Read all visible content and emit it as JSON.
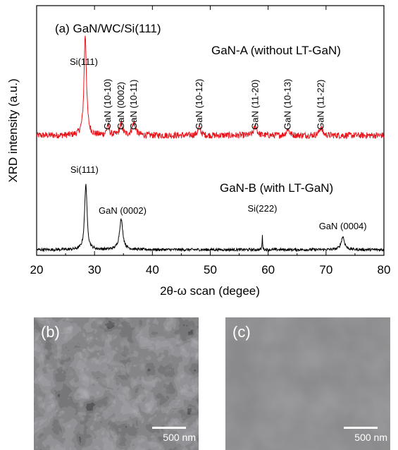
{
  "chart_data": {
    "type": "line",
    "title": "(a) GaN/WC/Si(111)",
    "xlabel": "2θ-ω scan (degee)",
    "ylabel": "XRD intensity (a.u.)",
    "xlim": [
      20,
      80
    ],
    "xticks": [
      "20",
      "30",
      "40",
      "50",
      "60",
      "70",
      "80"
    ],
    "series": [
      {
        "name": "GaN-A (without LT-GaN)",
        "color": "#e8141b",
        "baseline": 0.0,
        "noise": 0.02,
        "peaks": [
          {
            "x": 28.4,
            "height": 0.62,
            "width": 0.25
          },
          {
            "x": 32.3,
            "height": 0.06,
            "width": 0.25
          },
          {
            "x": 34.6,
            "height": 0.07,
            "width": 0.3
          },
          {
            "x": 36.8,
            "height": 0.08,
            "width": 0.35
          },
          {
            "x": 48.1,
            "height": 0.05,
            "width": 0.3
          },
          {
            "x": 57.8,
            "height": 0.06,
            "width": 0.3
          },
          {
            "x": 63.4,
            "height": 0.04,
            "width": 0.3
          },
          {
            "x": 69.1,
            "height": 0.05,
            "width": 0.3
          }
        ],
        "peak_labels": [
          {
            "text": "Si(111)",
            "x": 28.4,
            "level": 1.0
          },
          {
            "text": "GaN (10-10)",
            "x": 32.3,
            "level": 0.2
          },
          {
            "text": "GaN (0002)",
            "x": 34.6,
            "level": 0.2
          },
          {
            "text": "GaN (10-11)",
            "x": 36.8,
            "level": 0.2
          },
          {
            "text": "GaN (10-12)",
            "x": 48.1,
            "level": 0.2
          },
          {
            "text": "GaN (11-20)",
            "x": 57.8,
            "level": 0.2
          },
          {
            "text": "GaN (10-13)",
            "x": 63.4,
            "level": 0.2
          },
          {
            "text": "GaN (11-22)",
            "x": 69.1,
            "level": 0.2
          }
        ]
      },
      {
        "name": "GaN-B (with LT-GaN)",
        "color": "#000000",
        "baseline": 0.0,
        "noise": 0.015,
        "peaks": [
          {
            "x": 28.5,
            "height": 0.72,
            "width": 0.25
          },
          {
            "x": 34.6,
            "height": 0.33,
            "width": 0.35
          },
          {
            "x": 59.0,
            "height": 0.15,
            "width": 0.06
          },
          {
            "x": 72.9,
            "height": 0.14,
            "width": 0.35
          }
        ],
        "peak_labels": [
          {
            "text": "Si(111)",
            "x": 28.5
          },
          {
            "text": "GaN (0002)",
            "x": 34.6
          },
          {
            "text": "Si(222)",
            "x": 59.0
          },
          {
            "text": "GaN (0004)",
            "x": 72.9
          }
        ]
      }
    ],
    "grid": false
  },
  "micrographs": [
    {
      "label": "(b)",
      "scale_bar": "500 nm"
    },
    {
      "label": "(c)",
      "scale_bar": "500 nm"
    }
  ]
}
